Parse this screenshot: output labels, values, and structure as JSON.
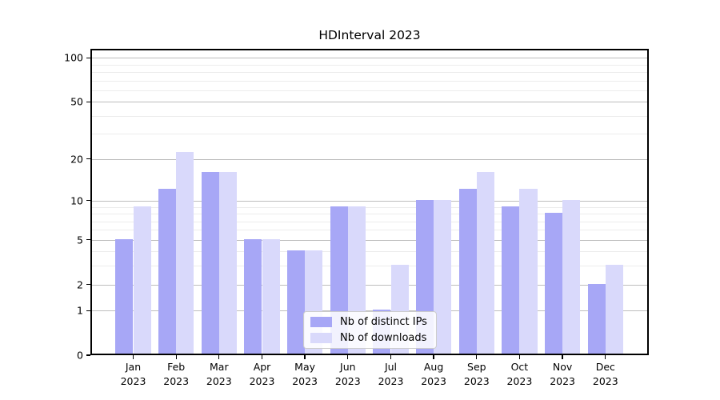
{
  "title": "HDInterval 2023",
  "chart_data": {
    "type": "bar",
    "title": "HDInterval 2023",
    "categories": [
      "Jan 2023",
      "Feb 2023",
      "Mar 2023",
      "Apr 2023",
      "May 2023",
      "Jun 2023",
      "Jul 2023",
      "Aug 2023",
      "Sep 2023",
      "Oct 2023",
      "Nov 2023",
      "Dec 2023"
    ],
    "x_tick_months": [
      "Jan",
      "Feb",
      "Mar",
      "Apr",
      "May",
      "Jun",
      "Jul",
      "Aug",
      "Sep",
      "Oct",
      "Nov",
      "Dec"
    ],
    "x_tick_year": "2023",
    "series": [
      {
        "name": "Nb of distinct IPs",
        "color": "#a7a7f6",
        "values": [
          5,
          12,
          16,
          5,
          4,
          9,
          1,
          10,
          12,
          9,
          8,
          2
        ]
      },
      {
        "name": "Nb of downloads",
        "color": "#d9d9fb",
        "values": [
          9,
          22,
          16,
          5,
          4,
          9,
          3,
          10,
          16,
          12,
          10,
          3
        ]
      }
    ],
    "xlabel": "",
    "ylabel": "",
    "yscale": "log(1+v)",
    "ylim": [
      0,
      115
    ],
    "y_major_ticks": [
      0,
      1,
      2,
      5,
      10,
      20,
      50,
      100
    ],
    "y_minor_ticks": [
      3,
      4,
      6,
      7,
      8,
      9,
      30,
      40,
      60,
      70,
      80,
      90
    ],
    "grid": "horizontal major+minor",
    "legend_position": "lower center"
  },
  "colors": {
    "background": "#ffffff",
    "axis": "#000000",
    "grid_major": "#bdbdbd",
    "grid_minor": "#ececec",
    "bar_distinct_ips": "#a7a7f6",
    "bar_downloads": "#d9d9fb",
    "legend_border": "#cccccc",
    "legend_background": "rgba(255,255,255,0.85)"
  }
}
